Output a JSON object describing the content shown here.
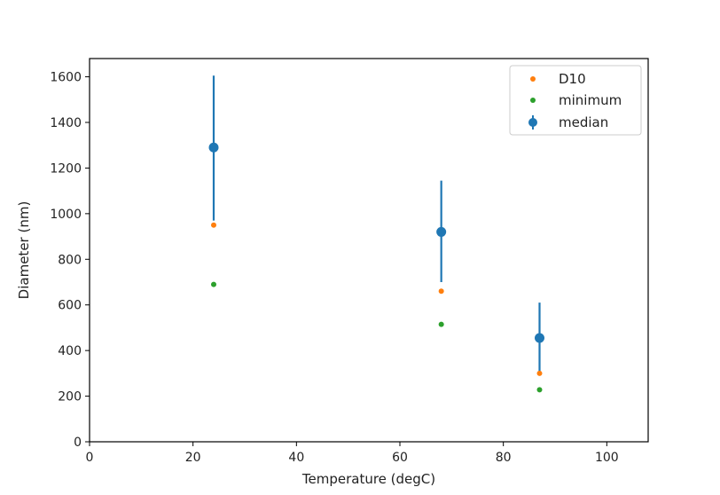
{
  "chart_data": {
    "type": "scatter",
    "title": "",
    "xlabel": "Temperature (degC)",
    "ylabel": "Diameter (nm)",
    "xlim": [
      0,
      108
    ],
    "ylim": [
      0,
      1680
    ],
    "xticks": [
      0,
      20,
      40,
      60,
      80,
      100
    ],
    "yticks": [
      0,
      200,
      400,
      600,
      800,
      1000,
      1200,
      1400,
      1600
    ],
    "grid": false,
    "legend_position": "top-right",
    "series": [
      {
        "name": "median",
        "color": "#1f77b4",
        "marker": "circle-errorbar",
        "x": [
          24,
          68,
          87
        ],
        "y": [
          1290,
          920,
          455
        ],
        "err_low": [
          970,
          700,
          300
        ],
        "err_high": [
          1605,
          1145,
          610
        ]
      },
      {
        "name": "D10",
        "color": "#ff7f0e",
        "marker": "dot",
        "x": [
          24,
          68,
          87
        ],
        "y": [
          950,
          660,
          300
        ]
      },
      {
        "name": "minimum",
        "color": "#2ca02c",
        "marker": "dot",
        "x": [
          24,
          68,
          87
        ],
        "y": [
          690,
          515,
          228
        ]
      }
    ],
    "legend_order": [
      "D10",
      "minimum",
      "median"
    ]
  }
}
